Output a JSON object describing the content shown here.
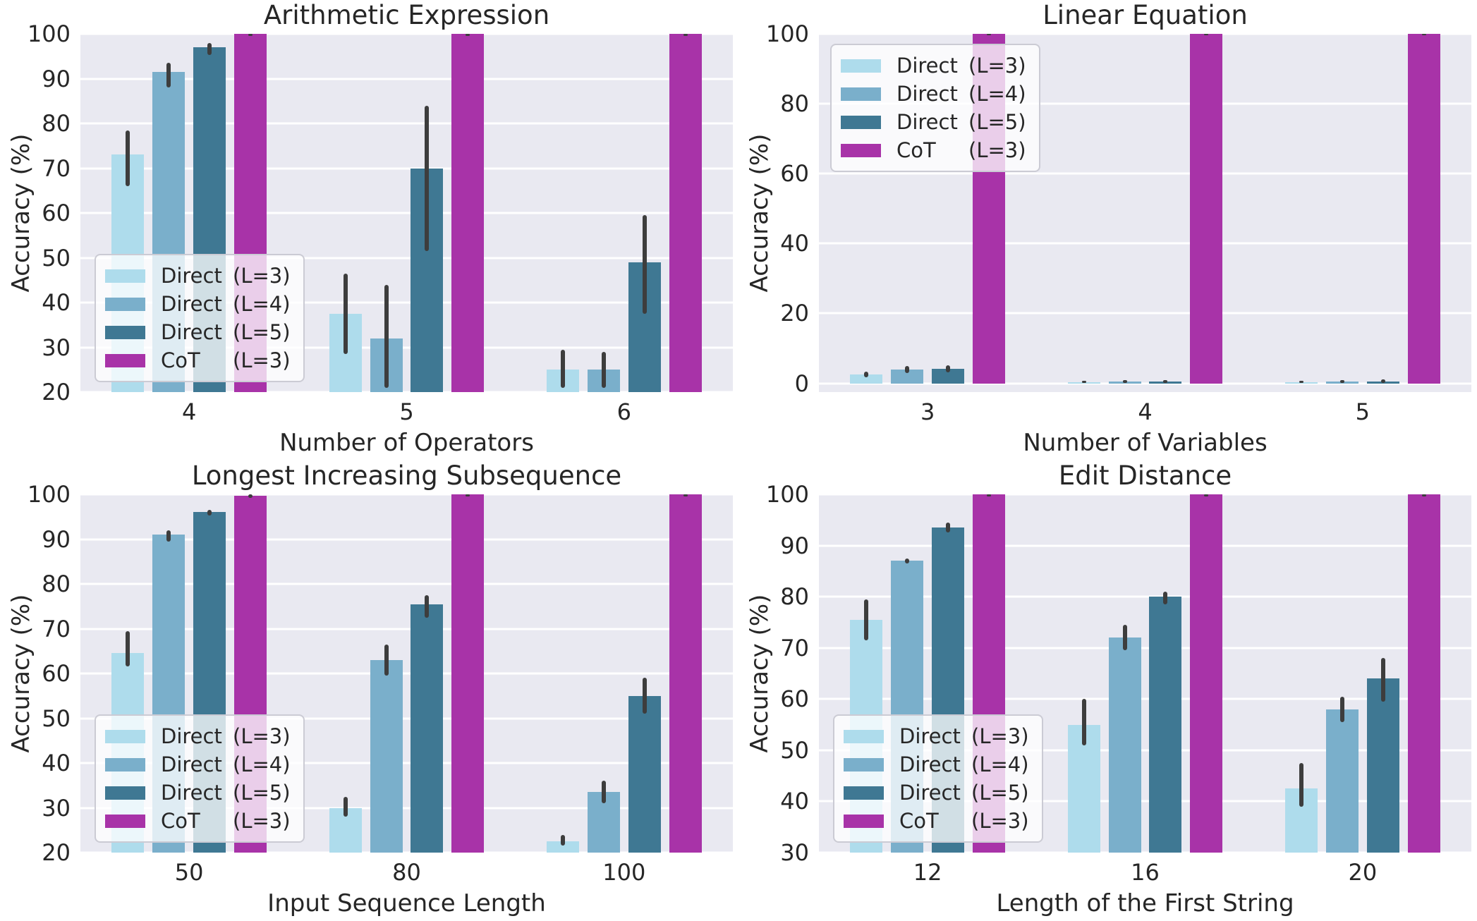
{
  "figure": {
    "background": "#ffffff",
    "plot_background": "#e9e9f1",
    "gridline_color": "#ffffff",
    "errorbar_color": "#3d3d3d",
    "text_color": "#262626"
  },
  "palette": {
    "direct_l3": "#aedcec",
    "direct_l4": "#7aafcb",
    "direct_l5": "#3f7893",
    "cot_l3": "#a833a8"
  },
  "legend_entries": [
    {
      "name": "Direct",
      "param": "(L=3)",
      "color_key": "direct_l3"
    },
    {
      "name": "Direct",
      "param": "(L=4)",
      "color_key": "direct_l4"
    },
    {
      "name": "Direct",
      "param": "(L=5)",
      "color_key": "direct_l5"
    },
    {
      "name": "CoT",
      "param": "(L=3)",
      "color_key": "cot_l3"
    }
  ],
  "chart_data": [
    {
      "type": "bar",
      "title": "Arithmetic Expression",
      "xlabel": "Number of Operators",
      "ylabel": "Accuracy (%)",
      "ylim": [
        20,
        100
      ],
      "yticks": [
        20,
        30,
        40,
        50,
        60,
        70,
        80,
        90,
        100
      ],
      "categories": [
        "4",
        "5",
        "6"
      ],
      "legend_position": "lower-left",
      "grid": true,
      "series": [
        {
          "name": "Direct (L=3)",
          "color_key": "direct_l3",
          "values": [
            73,
            37.5,
            25
          ],
          "errors": [
            [
              66,
              78.5
            ],
            [
              28.5,
              46.5
            ],
            [
              21,
              29.5
            ]
          ]
        },
        {
          "name": "Direct (L=4)",
          "color_key": "direct_l4",
          "values": [
            91.5,
            32,
            25
          ],
          "errors": [
            [
              88,
              93.5
            ],
            [
              21,
              44
            ],
            [
              21,
              29
            ]
          ]
        },
        {
          "name": "Direct (L=5)",
          "color_key": "direct_l5",
          "values": [
            97,
            70,
            49
          ],
          "errors": [
            [
              95.3,
              98
            ],
            [
              51.5,
              84
            ],
            [
              37.5,
              59.5
            ]
          ]
        },
        {
          "name": "CoT (L=3)",
          "color_key": "cot_l3",
          "values": [
            100,
            100,
            100
          ],
          "errors": [
            [
              99.5,
              100
            ],
            [
              99.5,
              100
            ],
            [
              99.5,
              100
            ]
          ]
        }
      ]
    },
    {
      "type": "bar",
      "title": "Linear Equation",
      "xlabel": "Number of Variables",
      "ylabel": "Accuracy (%)",
      "ylim": [
        0,
        100
      ],
      "display_ymin": -2.5,
      "bar_baseline": 0,
      "yticks": [
        0,
        20,
        40,
        60,
        80,
        100
      ],
      "categories": [
        "3",
        "4",
        "5"
      ],
      "legend_position": "upper-left",
      "grid": true,
      "series": [
        {
          "name": "Direct (L=3)",
          "color_key": "direct_l3",
          "values": [
            2.5,
            0.4,
            0.4
          ],
          "errors": [
            [
              1.8,
              3.3
            ],
            [
              0.1,
              0.8
            ],
            [
              0.1,
              0.8
            ]
          ]
        },
        {
          "name": "Direct (L=4)",
          "color_key": "direct_l4",
          "values": [
            3.9,
            0.5,
            0.5
          ],
          "errors": [
            [
              2.9,
              5.0
            ],
            [
              0.2,
              0.9
            ],
            [
              0.2,
              0.9
            ]
          ]
        },
        {
          "name": "Direct (L=5)",
          "color_key": "direct_l5",
          "values": [
            4.1,
            0.5,
            0.6
          ],
          "errors": [
            [
              3.1,
              5.1
            ],
            [
              0.2,
              1.0
            ],
            [
              0.2,
              1.1
            ]
          ]
        },
        {
          "name": "CoT (L=3)",
          "color_key": "cot_l3",
          "values": [
            100,
            100,
            100
          ],
          "errors": [
            [
              99.6,
              100
            ],
            [
              99.6,
              100
            ],
            [
              99.6,
              100
            ]
          ]
        }
      ]
    },
    {
      "type": "bar",
      "title": "Longest Increasing Subsequence",
      "xlabel": "Input Sequence Length",
      "ylabel": "Accuracy (%)",
      "ylim": [
        20,
        100
      ],
      "yticks": [
        20,
        30,
        40,
        50,
        60,
        70,
        80,
        90,
        100
      ],
      "categories": [
        "50",
        "80",
        "100"
      ],
      "legend_position": "lower-left",
      "grid": true,
      "series": [
        {
          "name": "Direct (L=3)",
          "color_key": "direct_l3",
          "values": [
            64.5,
            30,
            22.5
          ],
          "errors": [
            [
              61.5,
              69.5
            ],
            [
              28,
              32.5
            ],
            [
              21.5,
              24
            ]
          ]
        },
        {
          "name": "Direct (L=4)",
          "color_key": "direct_l4",
          "values": [
            91,
            63,
            33.5
          ],
          "errors": [
            [
              89.5,
              92
            ],
            [
              59.5,
              66.5
            ],
            [
              31,
              36
            ]
          ]
        },
        {
          "name": "Direct (L=5)",
          "color_key": "direct_l5",
          "values": [
            96,
            75.5,
            55
          ],
          "errors": [
            [
              95.3,
              96.6
            ],
            [
              72.5,
              77.5
            ],
            [
              51,
              59
            ]
          ]
        },
        {
          "name": "CoT (L=3)",
          "color_key": "cot_l3",
          "values": [
            99.7,
            100,
            100
          ],
          "errors": [
            [
              99.2,
              100
            ],
            [
              99.6,
              100
            ],
            [
              99.6,
              100
            ]
          ]
        }
      ]
    },
    {
      "type": "bar",
      "title": "Edit Distance",
      "xlabel": "Length of the First String",
      "ylabel": "Accuracy (%)",
      "ylim": [
        30,
        100
      ],
      "yticks": [
        30,
        40,
        50,
        60,
        70,
        80,
        90,
        100
      ],
      "categories": [
        "12",
        "16",
        "20"
      ],
      "legend_position": "lower-left",
      "grid": true,
      "series": [
        {
          "name": "Direct (L=3)",
          "color_key": "direct_l3",
          "values": [
            75.5,
            55,
            42.5
          ],
          "errors": [
            [
              71.5,
              79.5
            ],
            [
              51,
              60
            ],
            [
              39,
              47.5
            ]
          ]
        },
        {
          "name": "Direct (L=4)",
          "color_key": "direct_l4",
          "values": [
            87,
            72,
            58
          ],
          "errors": [
            [
              86.5,
              87.5
            ],
            [
              69.5,
              74.5
            ],
            [
              55.5,
              60.5
            ]
          ]
        },
        {
          "name": "Direct (L=5)",
          "color_key": "direct_l5",
          "values": [
            93.5,
            80,
            64
          ],
          "errors": [
            [
              92.5,
              94.5
            ],
            [
              78.5,
              81
            ],
            [
              59.5,
              68
            ]
          ]
        },
        {
          "name": "CoT (L=3)",
          "color_key": "cot_l3",
          "values": [
            100,
            100,
            100
          ],
          "errors": [
            [
              99.6,
              100
            ],
            [
              99.6,
              100
            ],
            [
              99.6,
              100
            ]
          ]
        }
      ]
    }
  ]
}
